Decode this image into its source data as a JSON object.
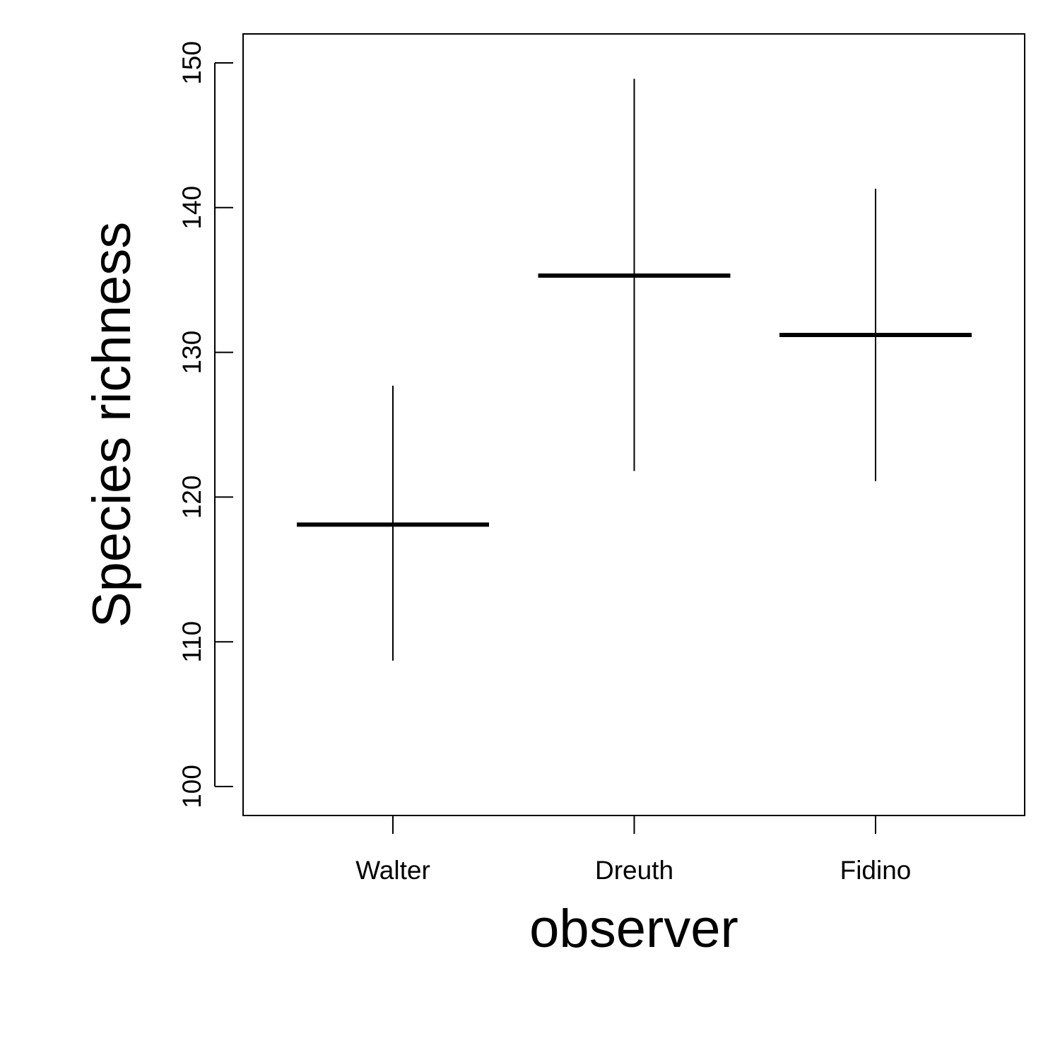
{
  "chart_data": {
    "type": "errorbar",
    "xlabel": "observer",
    "ylabel": "Species richness",
    "categories": [
      "Walter",
      "Dreuth",
      "Fidino"
    ],
    "series": [
      {
        "values": [
          118.1,
          135.3,
          131.2
        ],
        "lower": [
          108.7,
          121.8,
          121.1
        ],
        "upper": [
          127.7,
          148.9,
          141.3
        ]
      }
    ],
    "ylim": [
      98,
      152
    ],
    "yticks": [
      100,
      110,
      120,
      130,
      140,
      150
    ],
    "grid": false,
    "legend": "none",
    "color": "#000000"
  }
}
